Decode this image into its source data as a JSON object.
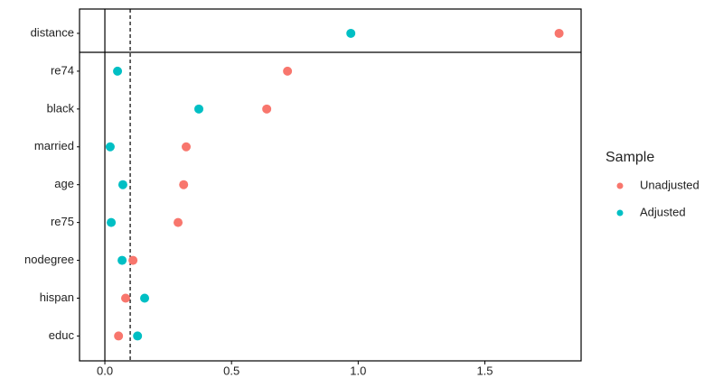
{
  "chart_data": {
    "type": "dot",
    "categories": [
      "distance",
      "re74",
      "black",
      "married",
      "age",
      "re75",
      "nodegree",
      "hispan",
      "educ"
    ],
    "series": [
      {
        "name": "Unadjusted",
        "color": "#F8766D",
        "values": [
          1.793,
          0.721,
          0.639,
          0.321,
          0.311,
          0.289,
          0.111,
          0.082,
          0.054
        ]
      },
      {
        "name": "Adjusted",
        "color": "#00BFC4",
        "values": [
          0.971,
          0.05,
          0.371,
          0.021,
          0.071,
          0.025,
          0.068,
          0.157,
          0.129
        ]
      }
    ],
    "xlim": [
      -0.1,
      1.88
    ],
    "xticks": [
      {
        "value": 0,
        "label": "0.0"
      },
      0.5,
      {
        "value": 1,
        "label": "1.0"
      },
      1.5
    ],
    "vlines": [
      {
        "value": 0,
        "style": "solid"
      },
      {
        "value": 0.1,
        "style": "dashed"
      }
    ],
    "legend_title": "Sample",
    "legend_position": "right"
  }
}
